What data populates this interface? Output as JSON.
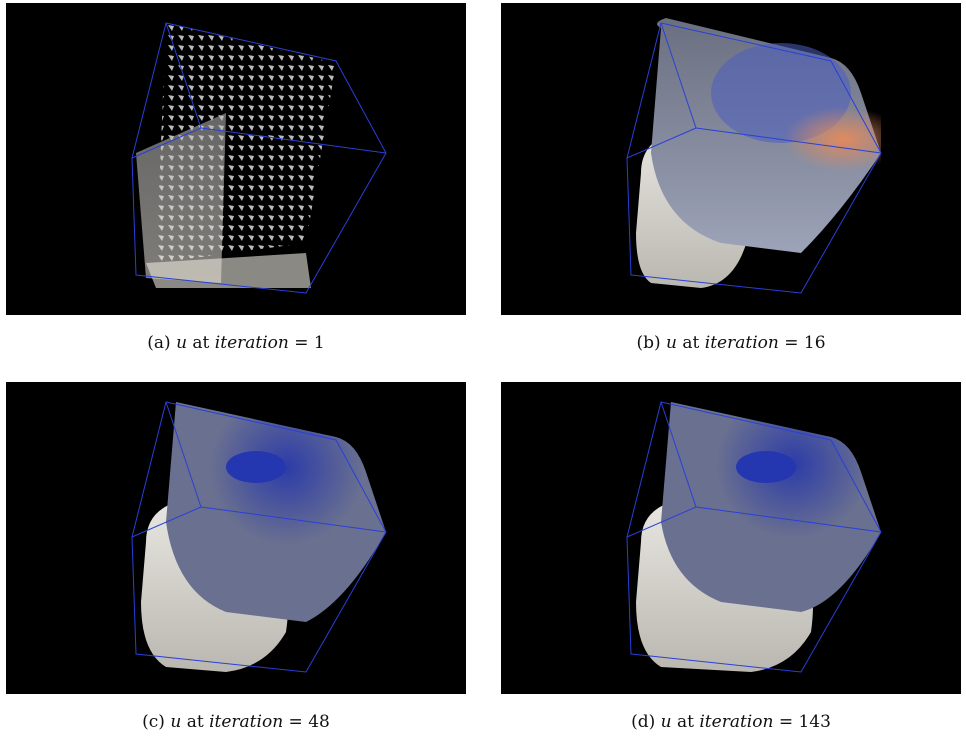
{
  "figure": {
    "panels": [
      {
        "id": "a",
        "label": "(a)",
        "var": "u",
        "at": "at",
        "iter_word": "iteration",
        "eq": "=",
        "value": "1"
      },
      {
        "id": "b",
        "label": "(b)",
        "var": "u",
        "at": "at",
        "iter_word": "iteration",
        "eq": "=",
        "value": "16"
      },
      {
        "id": "c",
        "label": "(c)",
        "var": "u",
        "at": "at",
        "iter_word": "iteration",
        "eq": "=",
        "value": "48"
      },
      {
        "id": "d",
        "label": "(d)",
        "var": "u",
        "at": "at",
        "iter_word": "iteration",
        "eq": "=",
        "value": "143"
      }
    ]
  },
  "colors": {
    "background": "#000000",
    "bbox": "#2a3fd8",
    "surface_light": "#e8e6e0",
    "cool": "#3c4fb8",
    "warm": "#e08a5e"
  }
}
